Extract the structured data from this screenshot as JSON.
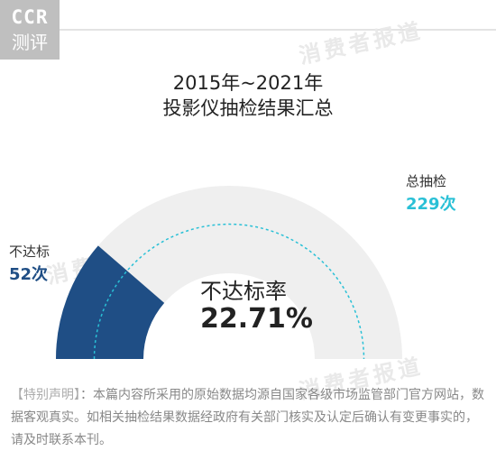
{
  "logo": {
    "line1": "CCR",
    "line2": "测评"
  },
  "watermark": "消费者报道",
  "title": {
    "line1": "2015年~2021年",
    "line2": "投影仪抽检结果汇总"
  },
  "chart_data": {
    "type": "gauge",
    "title": "2015年~2021年 投影仪抽检结果汇总",
    "total": {
      "label": "总抽检",
      "value": 229,
      "display": "229次"
    },
    "failed": {
      "label": "不达标",
      "value": 52,
      "display": "52次"
    },
    "rate": {
      "label": "不达标率",
      "value": 22.71,
      "display": "22.71%"
    },
    "colors": {
      "failed": "#1f4e85",
      "track": "#efefef",
      "total": "#29c0d6"
    }
  },
  "notice": {
    "tag": "【特别声明】",
    "text": "：本篇内容所采用的原始数据均源自国家各级市场监管部门官方网站，数据客观真实。如相关抽检结果数据经政府有关部门核实及认定后确认有变更事实的，请及时联系本刊。"
  }
}
